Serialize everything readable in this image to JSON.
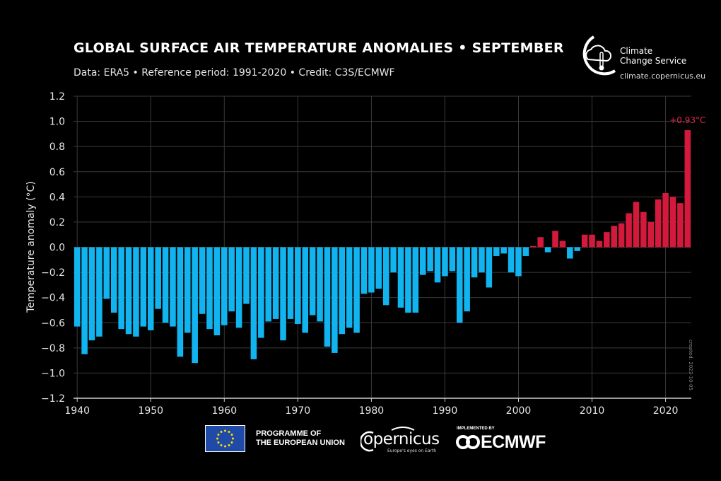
{
  "header": {
    "title": "GLOBAL SURFACE AIR TEMPERATURE ANOMALIES • SEPTEMBER",
    "subtitle": "Data: ERA5 • Reference period: 1991-2020 • Credit: C3S/ECMWF"
  },
  "brand": {
    "c3s_line1": "Climate",
    "c3s_line2": "Change Service",
    "c3s_url": "climate.copernicus.eu"
  },
  "created_note": "created: 2023-10-05",
  "footer": {
    "eu_line1": "PROGRAMME OF",
    "eu_line2": "THE EUROPEAN UNION",
    "copernicus_word": "opernicus",
    "copernicus_tagline": "Europe's eyes on Earth",
    "ecmwf_implemented": "IMPLEMENTED BY",
    "ecmwf_word": "ECMWF"
  },
  "colors": {
    "negative": "#12b4ef",
    "positive": "#d41a3c",
    "grid": "#3a3a3a",
    "axis": "#cfcfcf"
  },
  "chart_data": {
    "type": "bar",
    "title": "GLOBAL SURFACE AIR TEMPERATURE ANOMALIES • SEPTEMBER",
    "ylabel": "Temperature anomaly (°C)",
    "xlabel": "",
    "ylim": [
      -1.2,
      1.2
    ],
    "xlim": [
      1939.5,
      2023.5
    ],
    "yticks": [
      -1.2,
      -1.0,
      -0.8,
      -0.6,
      -0.4,
      -0.2,
      0.0,
      0.2,
      0.4,
      0.6,
      0.8,
      1.0,
      1.2
    ],
    "ytick_labels": [
      "−1.2",
      "−1.0",
      "−0.8",
      "−0.6",
      "−0.4",
      "−0.2",
      "0.0",
      "0.2",
      "0.4",
      "0.6",
      "0.8",
      "1.0",
      "1.2"
    ],
    "xticks": [
      1940,
      1950,
      1960,
      1970,
      1980,
      1990,
      2000,
      2010,
      2020
    ],
    "grid": true,
    "annotation": "+0.93°C",
    "x": [
      1940,
      1941,
      1942,
      1943,
      1944,
      1945,
      1946,
      1947,
      1948,
      1949,
      1950,
      1951,
      1952,
      1953,
      1954,
      1955,
      1956,
      1957,
      1958,
      1959,
      1960,
      1961,
      1962,
      1963,
      1964,
      1965,
      1966,
      1967,
      1968,
      1969,
      1970,
      1971,
      1972,
      1973,
      1974,
      1975,
      1976,
      1977,
      1978,
      1979,
      1980,
      1981,
      1982,
      1983,
      1984,
      1985,
      1986,
      1987,
      1988,
      1989,
      1990,
      1991,
      1992,
      1993,
      1994,
      1995,
      1996,
      1997,
      1998,
      1999,
      2000,
      2001,
      2002,
      2003,
      2004,
      2005,
      2006,
      2007,
      2008,
      2009,
      2010,
      2011,
      2012,
      2013,
      2014,
      2015,
      2016,
      2017,
      2018,
      2019,
      2020,
      2021,
      2022,
      2023
    ],
    "values": [
      -0.63,
      -0.85,
      -0.74,
      -0.71,
      -0.41,
      -0.52,
      -0.65,
      -0.69,
      -0.71,
      -0.63,
      -0.66,
      -0.49,
      -0.6,
      -0.63,
      -0.87,
      -0.68,
      -0.92,
      -0.53,
      -0.65,
      -0.7,
      -0.62,
      -0.51,
      -0.64,
      -0.45,
      -0.89,
      -0.72,
      -0.59,
      -0.57,
      -0.74,
      -0.57,
      -0.61,
      -0.68,
      -0.54,
      -0.59,
      -0.79,
      -0.84,
      -0.69,
      -0.64,
      -0.68,
      -0.37,
      -0.36,
      -0.33,
      -0.46,
      -0.2,
      -0.48,
      -0.52,
      -0.52,
      -0.22,
      -0.19,
      -0.28,
      -0.23,
      -0.19,
      -0.6,
      -0.51,
      -0.24,
      -0.2,
      -0.32,
      -0.07,
      -0.05,
      -0.2,
      -0.23,
      -0.07,
      0.01,
      0.08,
      -0.04,
      0.13,
      0.05,
      -0.09,
      -0.03,
      0.1,
      0.1,
      0.05,
      0.12,
      0.17,
      0.19,
      0.27,
      0.36,
      0.28,
      0.2,
      0.38,
      0.43,
      0.4,
      0.35,
      0.93
    ]
  }
}
